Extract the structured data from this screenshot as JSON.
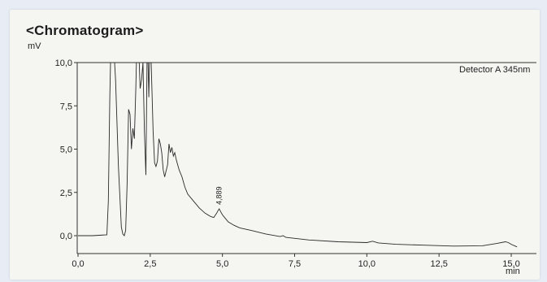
{
  "chart_data": {
    "type": "line",
    "title": "<Chromatogram>",
    "ylabel": "mV",
    "xlabel": "min",
    "xlim": [
      0,
      15.2
    ],
    "ylim": [
      -0.8,
      10
    ],
    "x_ticks": [
      0,
      2.5,
      5,
      7.5,
      10,
      12.5,
      15
    ],
    "x_tick_labels": [
      "0,0",
      "2,5",
      "5,0",
      "7,5",
      "10,0",
      "12,5",
      "15,0"
    ],
    "y_ticks": [
      0,
      2.5,
      5,
      7.5,
      10
    ],
    "y_tick_labels": [
      "0,0",
      "2,5",
      "5,0",
      "7,5",
      "10,0"
    ],
    "grid": false,
    "series": [
      {
        "name": "Detector A 345nm",
        "x": [
          0,
          0.5,
          1.0,
          1.05,
          1.1,
          1.15,
          1.2,
          1.3,
          1.4,
          1.5,
          1.55,
          1.6,
          1.65,
          1.7,
          1.75,
          1.8,
          1.85,
          1.9,
          1.95,
          2.0,
          2.05,
          2.1,
          2.15,
          2.2,
          2.25,
          2.3,
          2.35,
          2.4,
          2.45,
          2.5,
          2.55,
          2.6,
          2.65,
          2.7,
          2.75,
          2.8,
          2.85,
          2.9,
          2.95,
          3.0,
          3.1,
          3.15,
          3.2,
          3.25,
          3.3,
          3.35,
          3.4,
          3.5,
          3.6,
          3.7,
          3.8,
          4.0,
          4.2,
          4.4,
          4.6,
          4.7,
          4.8,
          4.85,
          4.889,
          4.95,
          5.0,
          5.1,
          5.2,
          5.4,
          5.6,
          6.0,
          6.5,
          7.0,
          7.1,
          7.2,
          8.0,
          9.0,
          10.0,
          10.2,
          10.4,
          11.0,
          12.0,
          13.0,
          14.0,
          14.5,
          14.8,
          14.9,
          15.0,
          15.2
        ],
        "y": [
          0.0,
          0.0,
          0.05,
          2.0,
          8.0,
          12.0,
          12.0,
          9.0,
          4.0,
          0.5,
          0.1,
          0.0,
          0.3,
          3.0,
          7.3,
          7.0,
          5.0,
          6.2,
          5.6,
          8.5,
          12.0,
          11.0,
          8.5,
          9.0,
          10.0,
          6.0,
          3.5,
          12.0,
          8.0,
          12.0,
          9.0,
          6.0,
          4.2,
          4.0,
          4.3,
          5.6,
          5.3,
          4.8,
          3.8,
          3.4,
          4.1,
          5.3,
          4.8,
          5.1,
          4.6,
          4.8,
          4.4,
          3.8,
          3.4,
          2.8,
          2.4,
          2.0,
          1.6,
          1.3,
          1.1,
          1.05,
          1.3,
          1.45,
          1.55,
          1.35,
          1.2,
          1.0,
          0.8,
          0.6,
          0.45,
          0.3,
          0.1,
          -0.05,
          0.0,
          -0.1,
          -0.25,
          -0.35,
          -0.4,
          -0.32,
          -0.42,
          -0.5,
          -0.55,
          -0.6,
          -0.58,
          -0.45,
          -0.35,
          -0.4,
          -0.5,
          -0.65
        ]
      }
    ],
    "annotations": [
      {
        "x": 4.889,
        "y": 1.55,
        "text": "4,889"
      }
    ]
  }
}
